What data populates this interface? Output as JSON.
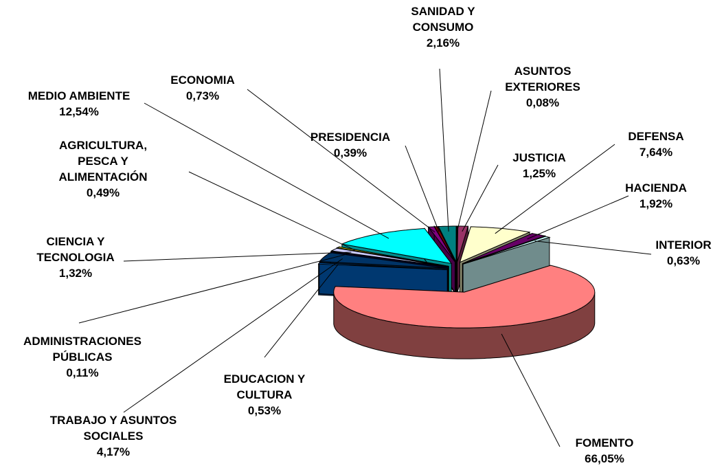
{
  "chart_data": {
    "type": "pie",
    "categories": [
      "ASUNTOS EXTERIORES",
      "JUSTICIA",
      "DEFENSA",
      "HACIENDA",
      "INTERIOR",
      "FOMENTO",
      "EDUCACION Y CULTURA",
      "TRABAJO Y ASUNTOS SOCIALES",
      "ADMINISTRACIONES PÚBLICAS",
      "CIENCIA Y TECNOLOGIA",
      "AGRICULTURA, PESCA Y ALIMENTACIÓN",
      "MEDIO AMBIENTE",
      "ECONOMIA",
      "PRESIDENCIA",
      "SANIDAD Y CONSUMO"
    ],
    "values": [
      0.08,
      1.25,
      7.64,
      1.92,
      0.63,
      66.05,
      0.53,
      4.17,
      0.11,
      1.32,
      0.49,
      12.54,
      0.73,
      0.39,
      2.16
    ],
    "value_labels": [
      "0,08%",
      "1,25%",
      "7,64%",
      "1,92%",
      "0,63%",
      "66,05%",
      "0,53%",
      "4,17%",
      "0,11%",
      "1,32%",
      "0,49%",
      "12,54%",
      "0,73%",
      "0,39%",
      "2,16%"
    ],
    "colors": [
      "#9999FF",
      "#993366",
      "#FFFFCC",
      "#660066",
      "#CCFFFF",
      "#FF8080",
      "#0066CC",
      "#003366",
      "#000080",
      "#CCCCFF",
      "#FFFF00",
      "#00FFFF",
      "#800080",
      "#800000",
      "#008080"
    ]
  }
}
